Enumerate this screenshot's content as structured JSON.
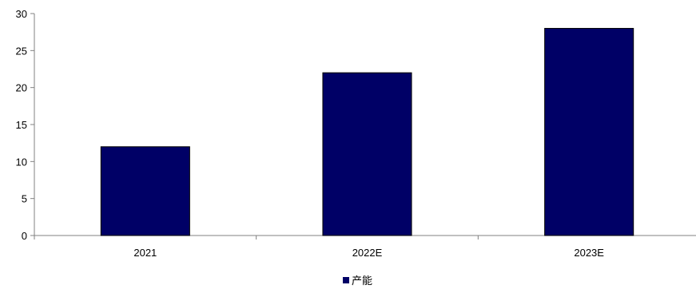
{
  "chart_data": {
    "type": "bar",
    "categories": [
      "2021",
      "2022E",
      "2023E"
    ],
    "series": [
      {
        "name": "产能",
        "values": [
          12,
          22,
          28
        ],
        "color": "#000066"
      }
    ],
    "ylim": [
      0,
      30
    ],
    "yticks": [
      0,
      5,
      10,
      15,
      20,
      25,
      30
    ],
    "grid": false,
    "legend_position": "bottom-center",
    "title": "",
    "xlabel": "",
    "ylabel": ""
  }
}
